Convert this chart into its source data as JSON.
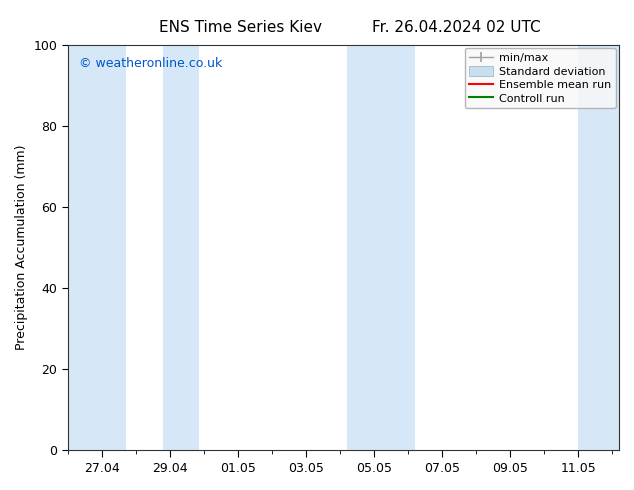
{
  "title_left": "ENS Time Series Kiev",
  "title_right": "Fr. 26.04.2024 02 UTC",
  "ylabel": "Precipitation Accumulation (mm)",
  "ylim": [
    0,
    100
  ],
  "yticks": [
    0,
    20,
    40,
    60,
    80,
    100
  ],
  "background_color": "#ffffff",
  "plot_bg_color": "#ffffff",
  "watermark": "© weatheronline.co.uk",
  "watermark_color": "#0055cc",
  "x_tick_labels": [
    "27.04",
    "29.04",
    "01.05",
    "03.05",
    "05.05",
    "07.05",
    "09.05",
    "11.05"
  ],
  "shaded_color": "#d6e8f7",
  "legend_entries": [
    {
      "label": "min/max",
      "color": "#a0a0a0",
      "type": "errorbar"
    },
    {
      "label": "Standard deviation",
      "color": "#c8dff0",
      "type": "box"
    },
    {
      "label": "Ensemble mean run",
      "color": "#ff0000",
      "type": "line"
    },
    {
      "label": "Controll run",
      "color": "#008000",
      "type": "line"
    }
  ],
  "font_size": 9,
  "title_font_size": 11
}
